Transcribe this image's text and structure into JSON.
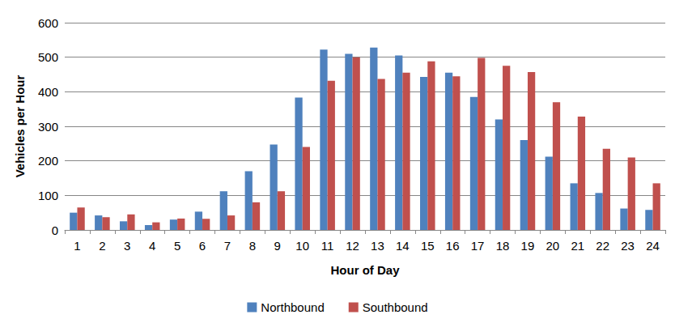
{
  "chart_data": {
    "type": "bar",
    "x_label": "Hour of Day",
    "y_label": "Vehicles per Hour",
    "categories": [
      "1",
      "2",
      "3",
      "4",
      "5",
      "6",
      "7",
      "8",
      "9",
      "10",
      "11",
      "12",
      "13",
      "14",
      "15",
      "16",
      "17",
      "18",
      "19",
      "20",
      "21",
      "22",
      "23",
      "24"
    ],
    "series": [
      {
        "name": "Northbound",
        "color": "#4f81bd",
        "values": [
          50,
          42,
          25,
          14,
          30,
          53,
          112,
          170,
          247,
          383,
          522,
          510,
          528,
          505,
          443,
          455,
          385,
          320,
          260,
          212,
          135,
          107,
          62,
          58
        ]
      },
      {
        "name": "Southbound",
        "color": "#c0504d",
        "values": [
          65,
          37,
          45,
          22,
          33,
          32,
          42,
          80,
          112,
          240,
          432,
          500,
          437,
          455,
          488,
          445,
          498,
          475,
          457,
          370,
          328,
          235,
          210,
          135
        ]
      }
    ],
    "ylim": [
      0,
      600
    ],
    "yticks": [
      0,
      100,
      200,
      300,
      400,
      500,
      600
    ],
    "grid": true,
    "legend": "bottom"
  }
}
